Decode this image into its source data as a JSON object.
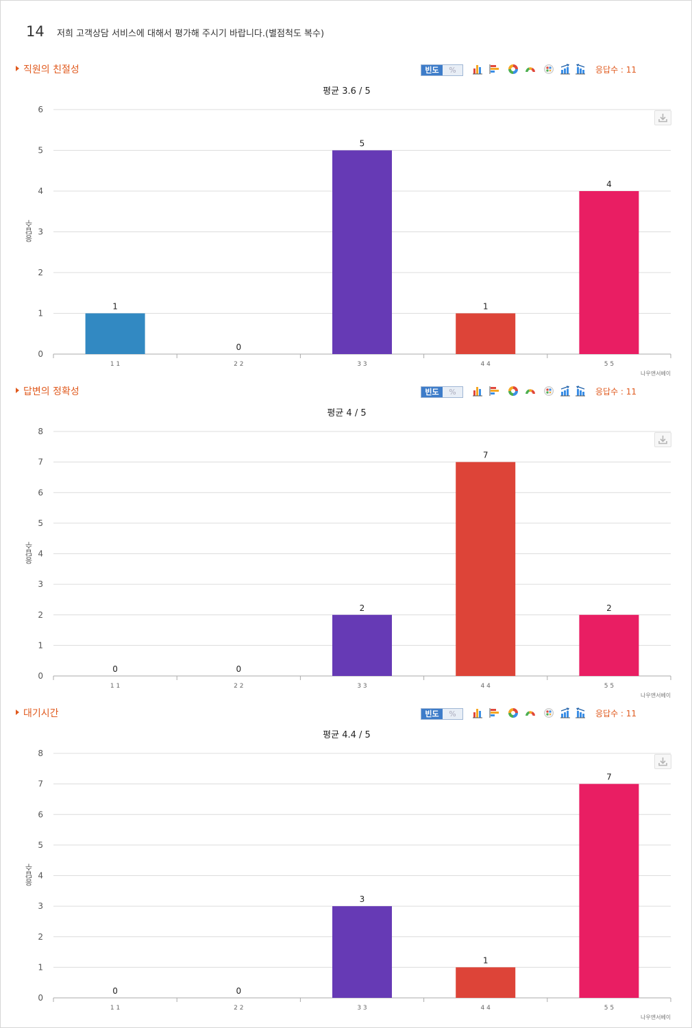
{
  "question": {
    "number": "14",
    "text": "저희 고객상담 서비스에 대해서 평가해 주시기 바랍니다.(별점척도 복수)"
  },
  "toolbar": {
    "freq_label": "빈도",
    "pct_label": "%",
    "icons": [
      "bar-chart-icon",
      "horizontal-bar-icon",
      "donut-chart-icon",
      "gauge-chart-icon",
      "bubble-chart-icon",
      "stacked-bar-icon",
      "reverse-stacked-bar-icon"
    ]
  },
  "colors": [
    "#3289c2",
    "#3289c2",
    "#663ab5",
    "#dd4438",
    "#e91e63"
  ],
  "ylabel": "응답수",
  "credit": "나우앤서베이",
  "sections": [
    {
      "title": "직원의 친절성",
      "response_count": "응답수 : 11",
      "avg": "평균 3.6 / 5"
    },
    {
      "title": "답변의 정확성",
      "response_count": "응답수 : 11",
      "avg": "평균 4 / 5"
    },
    {
      "title": "대기시간",
      "response_count": "응답수 : 11",
      "avg": "평균 4.4 / 5"
    }
  ],
  "chart_data": [
    {
      "type": "bar",
      "title": "평균 3.6 / 5",
      "categories": [
        "1 1",
        "2 2",
        "3 3",
        "4 4",
        "5 5"
      ],
      "values": [
        1,
        0,
        5,
        1,
        4
      ],
      "ylabel": "응답수",
      "ylim": [
        0,
        6
      ],
      "yticks": [
        0,
        1,
        2,
        3,
        4,
        5,
        6
      ],
      "grid": true,
      "legend": "none"
    },
    {
      "type": "bar",
      "title": "평균 4 / 5",
      "categories": [
        "1 1",
        "2 2",
        "3 3",
        "4 4",
        "5 5"
      ],
      "values": [
        0,
        0,
        2,
        7,
        2
      ],
      "ylabel": "응답수",
      "ylim": [
        0,
        8
      ],
      "yticks": [
        0,
        1,
        2,
        3,
        4,
        5,
        6,
        7,
        8
      ],
      "grid": true,
      "legend": "none"
    },
    {
      "type": "bar",
      "title": "평균 4.4 / 5",
      "categories": [
        "1 1",
        "2 2",
        "3 3",
        "4 4",
        "5 5"
      ],
      "values": [
        0,
        0,
        3,
        1,
        7
      ],
      "ylabel": "응답수",
      "ylim": [
        0,
        8
      ],
      "yticks": [
        0,
        1,
        2,
        3,
        4,
        5,
        6,
        7,
        8
      ],
      "grid": true,
      "legend": "none"
    }
  ]
}
